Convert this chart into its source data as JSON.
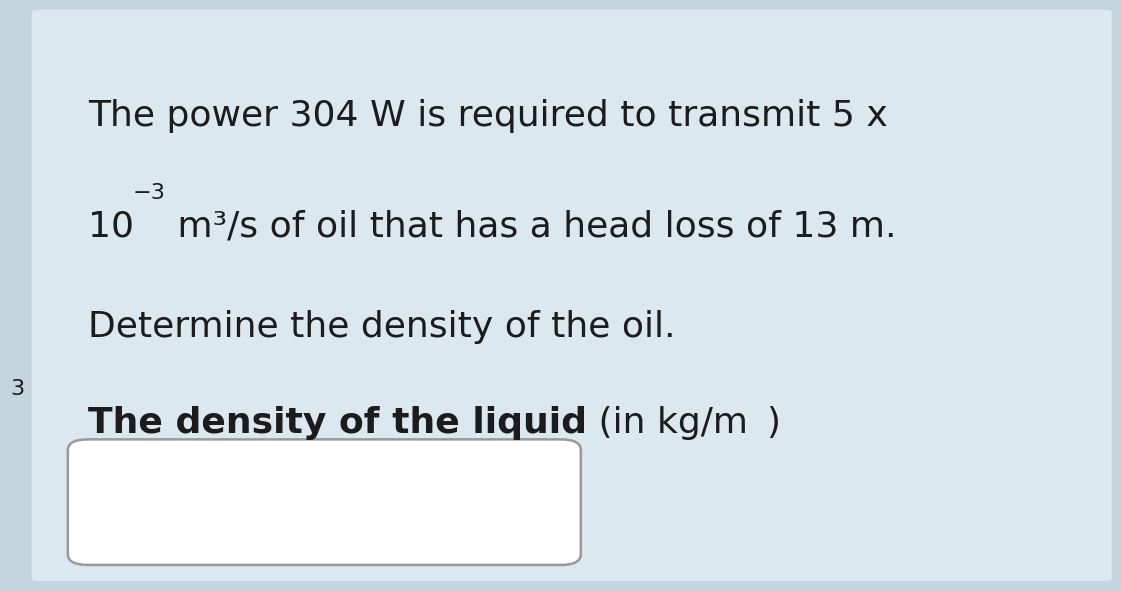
{
  "bg_color": "#dce8f0",
  "outer_bg_color": "#c5d5de",
  "white_box_color": "#ffffff",
  "line1": "The power 304 W is required to transmit 5 x",
  "line3": "Determine the density of the oil.",
  "bold_part": "The density of the liquid",
  "body_fontsize": 26,
  "bold_fontsize": 26,
  "fig_width": 11.25,
  "fig_height": 5.95,
  "text_color": "#1c1c1c",
  "box_edge_color": "#999999"
}
